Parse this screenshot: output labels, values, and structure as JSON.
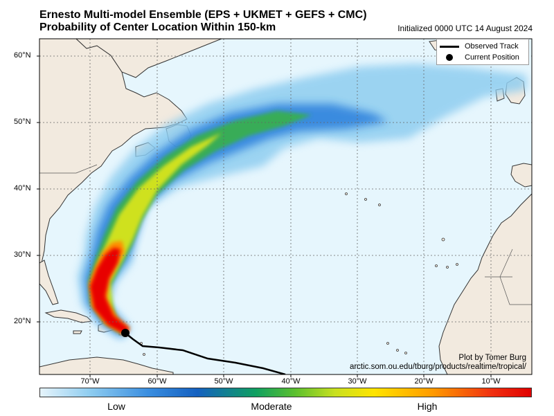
{
  "title_line1": "Ernesto Multi-model Ensemble (EPS + UKMET + GEFS + CMC)",
  "title_line2": "Probability of Center Location Within 150-km",
  "initialized": "Initialized 0000 UTC 14 August 2024",
  "legend": {
    "observed_track": "Observed Track",
    "current_position": "Current Position"
  },
  "credit_line1": "Plot by Tomer Burg",
  "credit_line2": "arctic.som.ou.edu/tburg/products/realtime/tropical/",
  "x_ticks": [
    "70°W",
    "60°W",
    "50°W",
    "40°W",
    "30°W",
    "20°W",
    "10°W"
  ],
  "y_ticks": [
    "20°N",
    "30°N",
    "40°N",
    "50°N",
    "60°N"
  ],
  "colorbar": {
    "low": "Low",
    "moderate": "Moderate",
    "high": "High"
  },
  "colors": {
    "ocean": "#e6f6fd",
    "land": "#f2eadf",
    "high": "#e80000",
    "track": "#000000"
  }
}
